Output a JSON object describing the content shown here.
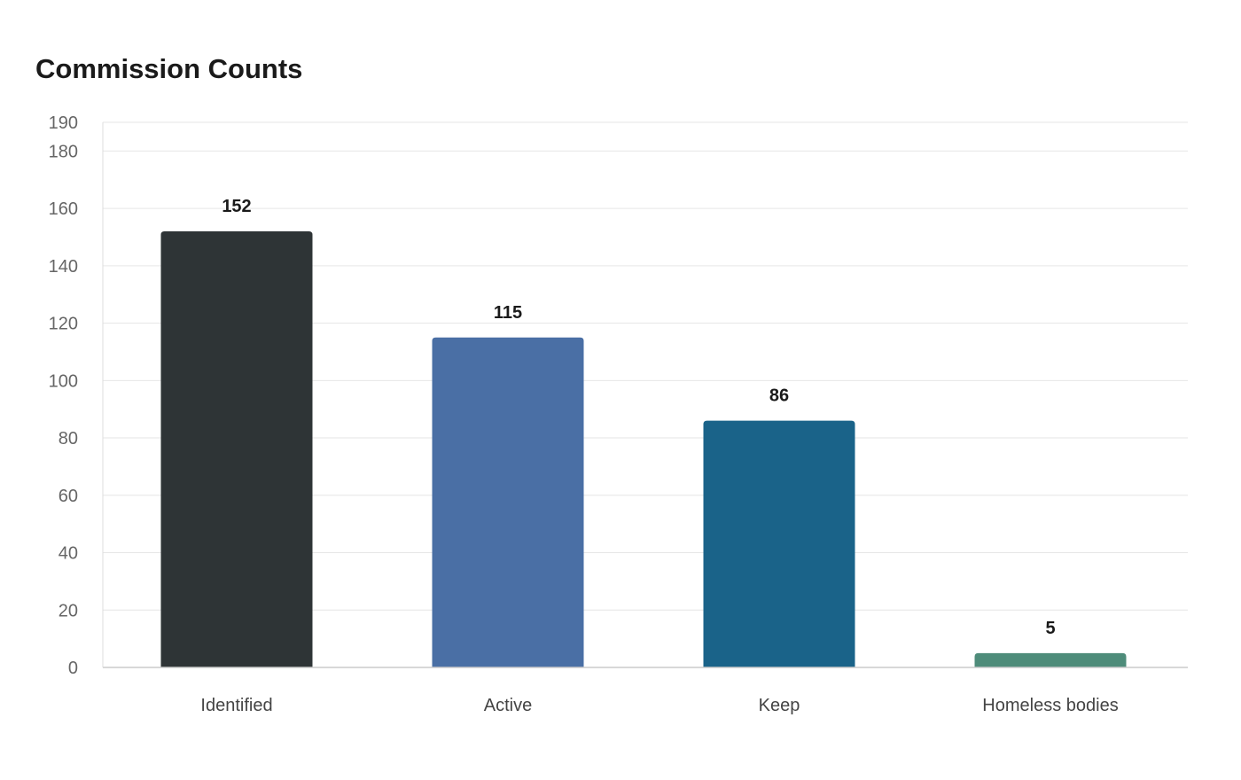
{
  "chart_data": {
    "type": "bar",
    "title": "Commission Counts",
    "categories": [
      "Identified",
      "Active",
      "Keep",
      "Homeless bodies"
    ],
    "values": [
      152,
      115,
      86,
      5
    ],
    "colors": [
      "#2e3436",
      "#4a6fa5",
      "#1a6389",
      "#4e8c7a"
    ],
    "ylim": [
      0,
      190
    ],
    "yticks": [
      0,
      20,
      40,
      60,
      80,
      100,
      120,
      140,
      160,
      180,
      190
    ],
    "xlabel": "",
    "ylabel": "",
    "grid": true,
    "legend": "none"
  }
}
